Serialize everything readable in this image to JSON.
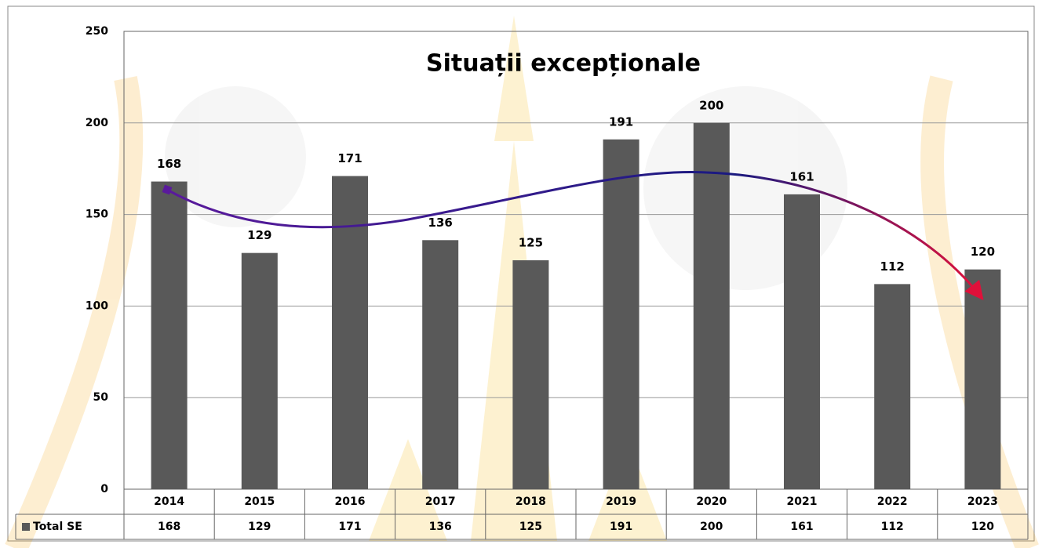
{
  "chart_data": {
    "type": "bar",
    "title": "Situații excepționale",
    "categories": [
      "2014",
      "2015",
      "2016",
      "2017",
      "2018",
      "2019",
      "2020",
      "2021",
      "2022",
      "2023"
    ],
    "series": [
      {
        "name": "Total SE",
        "color": "#595959",
        "values": [
          168,
          129,
          171,
          136,
          125,
          191,
          200,
          161,
          112,
          120
        ]
      }
    ],
    "ylim": [
      0,
      250
    ],
    "yticks": [
      0,
      50,
      100,
      150,
      200,
      250
    ],
    "grid": true,
    "legend": "table"
  }
}
